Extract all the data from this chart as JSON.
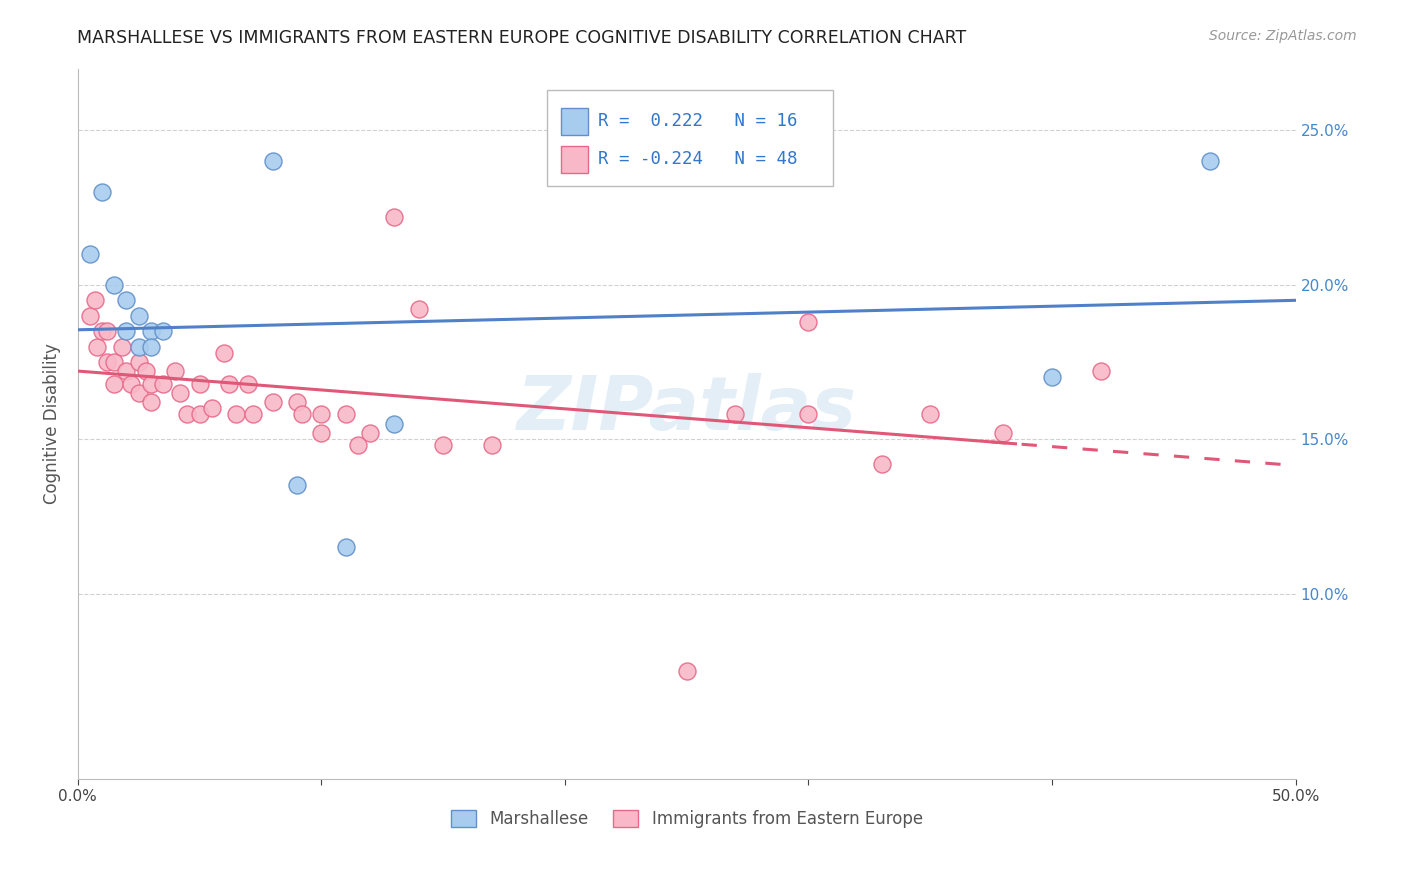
{
  "title": "MARSHALLESE VS IMMIGRANTS FROM EASTERN EUROPE COGNITIVE DISABILITY CORRELATION CHART",
  "source": "Source: ZipAtlas.com",
  "ylabel": "Cognitive Disability",
  "xlim": [
    0.0,
    0.5
  ],
  "ylim": [
    0.04,
    0.27
  ],
  "yticks": [
    0.1,
    0.15,
    0.2,
    0.25
  ],
  "ytick_labels": [
    "10.0%",
    "15.0%",
    "20.0%",
    "25.0%"
  ],
  "xticks": [
    0.0,
    0.1,
    0.2,
    0.3,
    0.4,
    0.5
  ],
  "xtick_labels": [
    "0.0%",
    "",
    "",
    "",
    "",
    "50.0%"
  ],
  "right_ytick_labels": [
    "10.0%",
    "15.0%",
    "20.0%",
    "25.0%"
  ],
  "blue_r": 0.222,
  "blue_n": 16,
  "pink_r": -0.224,
  "pink_n": 48,
  "blue_color": "#A8CCEE",
  "pink_color": "#F8B8C8",
  "blue_edge_color": "#6090C8",
  "pink_edge_color": "#E86888",
  "blue_line_color": "#5080C8",
  "pink_line_color": "#E05878",
  "watermark": "ZIPatlas",
  "blue_scatter": [
    [
      0.005,
      0.21
    ],
    [
      0.01,
      0.23
    ],
    [
      0.015,
      0.2
    ],
    [
      0.02,
      0.195
    ],
    [
      0.02,
      0.185
    ],
    [
      0.025,
      0.19
    ],
    [
      0.025,
      0.18
    ],
    [
      0.03,
      0.185
    ],
    [
      0.03,
      0.18
    ],
    [
      0.035,
      0.185
    ],
    [
      0.08,
      0.24
    ],
    [
      0.09,
      0.135
    ],
    [
      0.11,
      0.115
    ],
    [
      0.13,
      0.155
    ],
    [
      0.4,
      0.17
    ],
    [
      0.465,
      0.24
    ]
  ],
  "pink_scatter": [
    [
      0.005,
      0.19
    ],
    [
      0.007,
      0.195
    ],
    [
      0.008,
      0.18
    ],
    [
      0.01,
      0.185
    ],
    [
      0.012,
      0.175
    ],
    [
      0.012,
      0.185
    ],
    [
      0.015,
      0.175
    ],
    [
      0.015,
      0.168
    ],
    [
      0.018,
      0.18
    ],
    [
      0.02,
      0.172
    ],
    [
      0.022,
      0.168
    ],
    [
      0.025,
      0.175
    ],
    [
      0.025,
      0.165
    ],
    [
      0.028,
      0.172
    ],
    [
      0.03,
      0.168
    ],
    [
      0.03,
      0.162
    ],
    [
      0.035,
      0.168
    ],
    [
      0.04,
      0.172
    ],
    [
      0.042,
      0.165
    ],
    [
      0.045,
      0.158
    ],
    [
      0.05,
      0.168
    ],
    [
      0.05,
      0.158
    ],
    [
      0.055,
      0.16
    ],
    [
      0.06,
      0.178
    ],
    [
      0.062,
      0.168
    ],
    [
      0.065,
      0.158
    ],
    [
      0.07,
      0.168
    ],
    [
      0.072,
      0.158
    ],
    [
      0.08,
      0.162
    ],
    [
      0.09,
      0.162
    ],
    [
      0.092,
      0.158
    ],
    [
      0.1,
      0.158
    ],
    [
      0.1,
      0.152
    ],
    [
      0.11,
      0.158
    ],
    [
      0.115,
      0.148
    ],
    [
      0.12,
      0.152
    ],
    [
      0.13,
      0.222
    ],
    [
      0.14,
      0.192
    ],
    [
      0.15,
      0.148
    ],
    [
      0.17,
      0.148
    ],
    [
      0.25,
      0.075
    ],
    [
      0.27,
      0.158
    ],
    [
      0.3,
      0.188
    ],
    [
      0.3,
      0.158
    ],
    [
      0.33,
      0.142
    ],
    [
      0.35,
      0.158
    ],
    [
      0.38,
      0.152
    ],
    [
      0.42,
      0.172
    ]
  ]
}
